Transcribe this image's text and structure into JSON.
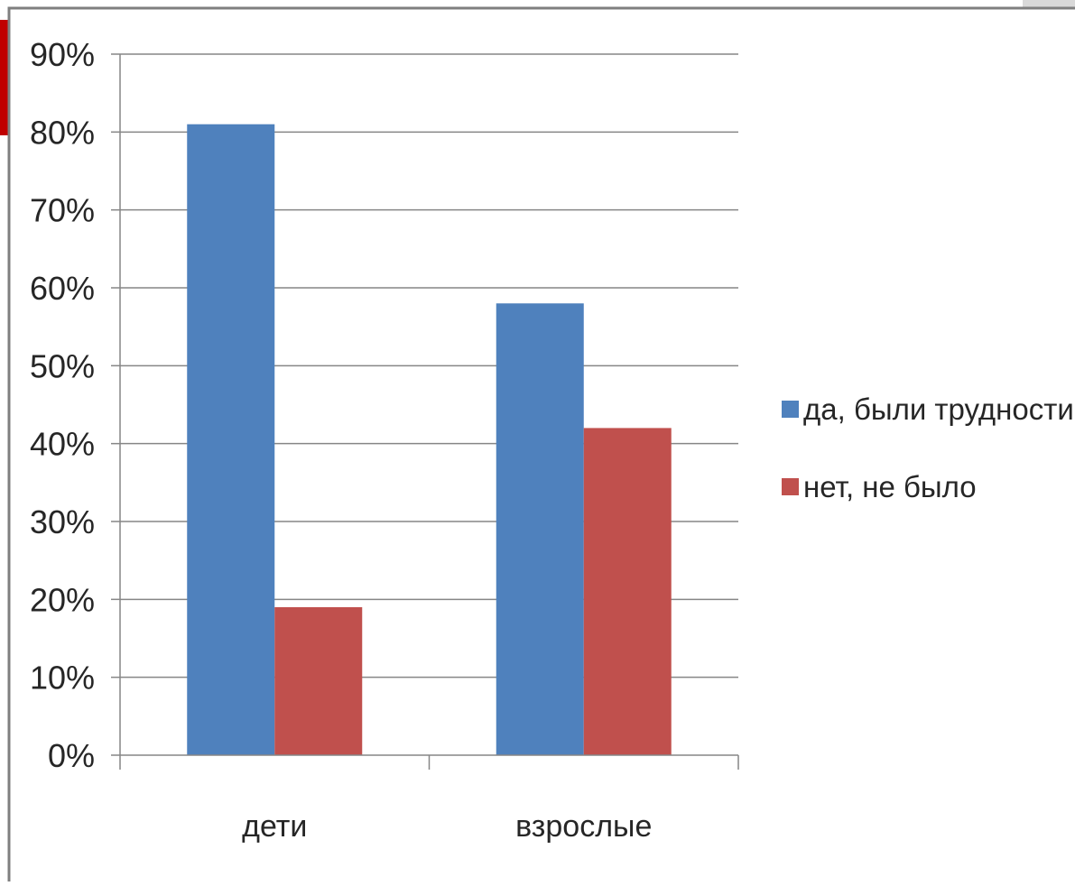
{
  "chart_data": {
    "type": "bar",
    "categories": [
      "дети",
      "взрослые"
    ],
    "series": [
      {
        "name": "да, были трудности",
        "values": [
          81,
          58
        ]
      },
      {
        "name": "нет, не было",
        "values": [
          19,
          42
        ]
      }
    ],
    "ylim": [
      0,
      90
    ],
    "yticks": [
      "0%",
      "10%",
      "20%",
      "30%",
      "40%",
      "50%",
      "60%",
      "70%",
      "80%",
      "90%"
    ],
    "value_format": "percent",
    "grid": true,
    "legend": "right"
  },
  "colors": {
    "series": [
      "#4F81BD",
      "#C0504D"
    ],
    "grid": "#868686",
    "axis": "#868686",
    "frame": "#7f7f7f",
    "text": "#262626"
  }
}
